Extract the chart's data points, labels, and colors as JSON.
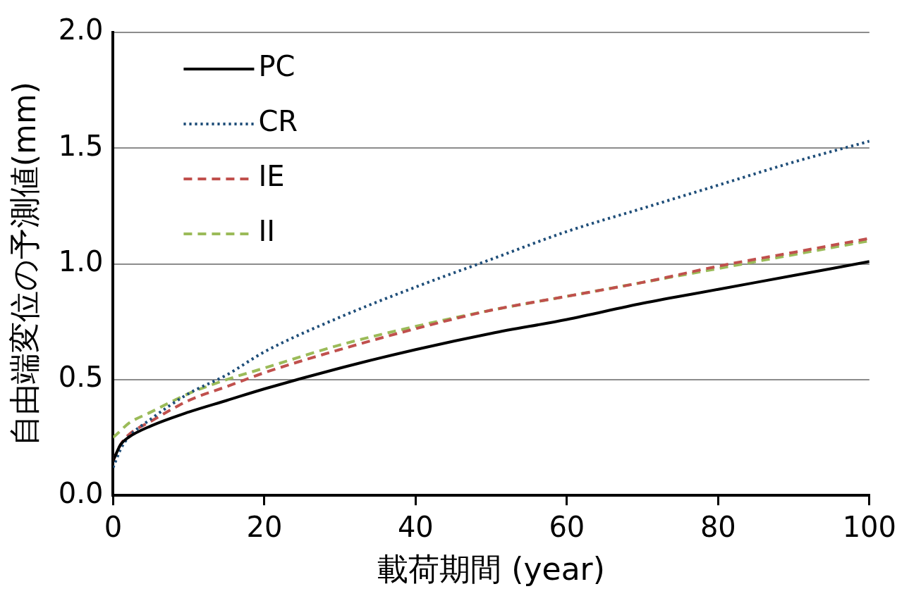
{
  "chart_data": {
    "type": "line",
    "xlabel": "載荷期間 (year)",
    "ylabel": "自由端変位の予測値(mm)",
    "xlim": [
      0,
      100
    ],
    "xticks": [
      0,
      20,
      40,
      60,
      80,
      100
    ],
    "ylim": [
      0,
      2
    ],
    "yticks": [
      {
        "value": 0,
        "label": "0.0"
      },
      {
        "value": 0.5,
        "label": "0.5"
      },
      {
        "value": 1,
        "label": "1.0"
      },
      {
        "value": 1.5,
        "label": "1.5"
      },
      {
        "value": 2,
        "label": "2.0"
      }
    ],
    "grid": "y",
    "legend": "top left",
    "marker": "none",
    "x": [
      0,
      1,
      2,
      5,
      10,
      15,
      20,
      30,
      40,
      50,
      60,
      70,
      80,
      90,
      100
    ],
    "series": [
      {
        "name": "PC",
        "color": "#000000",
        "line_style": "solid",
        "values": [
          0.15,
          0.22,
          0.25,
          0.3,
          0.36,
          0.41,
          0.46,
          0.55,
          0.63,
          0.7,
          0.76,
          0.83,
          0.89,
          0.95,
          1.01
        ]
      },
      {
        "name": "CR",
        "color": "#1f4e79",
        "line_style": "dotted",
        "values": [
          0.12,
          0.2,
          0.25,
          0.33,
          0.44,
          0.52,
          0.62,
          0.77,
          0.9,
          1.02,
          1.14,
          1.24,
          1.34,
          1.44,
          1.53
        ]
      },
      {
        "name": "IE",
        "color": "#c0504d",
        "line_style": "dashed",
        "values": [
          0.15,
          0.22,
          0.26,
          0.32,
          0.41,
          0.47,
          0.53,
          0.63,
          0.72,
          0.8,
          0.86,
          0.92,
          0.99,
          1.05,
          1.11
        ]
      },
      {
        "name": "II",
        "color": "#9bbb59",
        "line_style": "dashed",
        "values": [
          0.25,
          0.28,
          0.31,
          0.36,
          0.44,
          0.5,
          0.55,
          0.65,
          0.73,
          0.8,
          0.86,
          0.92,
          0.98,
          1.04,
          1.1
        ]
      }
    ]
  }
}
